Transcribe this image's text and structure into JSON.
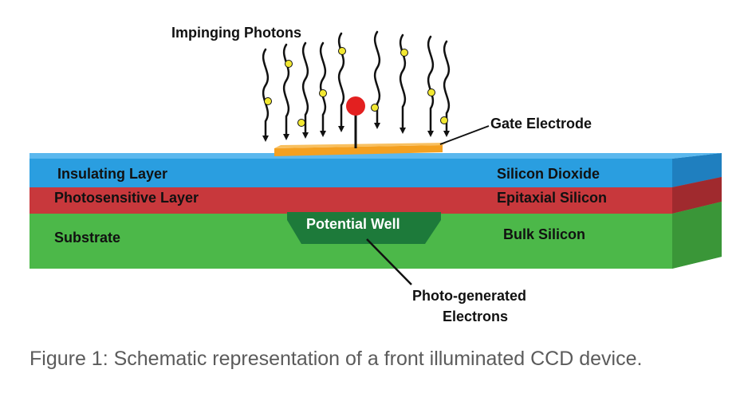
{
  "labels": {
    "photons": "Impinging Photons",
    "gate_electrode": "Gate Electrode",
    "insulating_layer": "Insulating Layer",
    "silicon_dioxide": "Silicon Dioxide",
    "photosensitive_layer": "Photosensitive Layer",
    "epitaxial_silicon": "Epitaxial Silicon",
    "substrate": "Substrate",
    "bulk_silicon": "Bulk Silicon",
    "potential_well": "Potential Well",
    "electrons_line1": "Photo-generated",
    "electrons_line2": "Electrons"
  },
  "caption": "Figure 1: Schematic representation of a front illuminated CCD device.",
  "colors": {
    "insulating": "#2a9ee0",
    "photosensitive": "#c8383c",
    "substrate": "#4cb849",
    "well": "#1d7a3a",
    "gate": "#f4a020",
    "electron": "#e32020",
    "photon_dot": "#f2e832"
  }
}
